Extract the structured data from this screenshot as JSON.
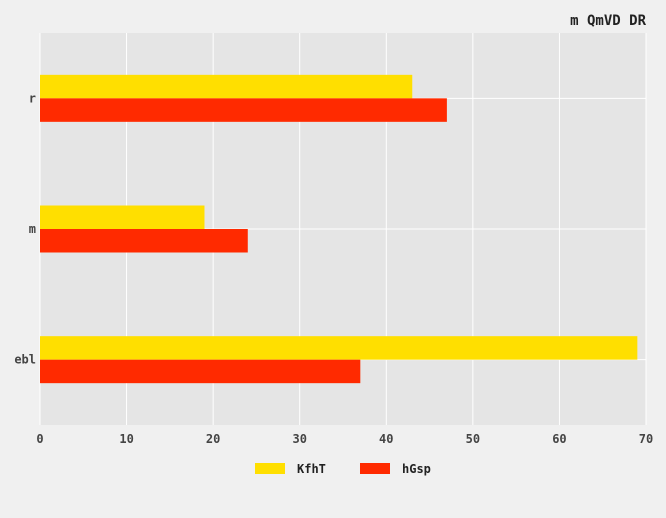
{
  "chart_data": {
    "type": "bar",
    "orientation": "horizontal",
    "title": "m QmVD DR",
    "categories": [
      "r",
      "m",
      "ebl"
    ],
    "series": [
      {
        "name": "KfhT",
        "values": [
          43,
          19,
          69
        ],
        "color": "#ffdf00"
      },
      {
        "name": "hGsp",
        "values": [
          47,
          24,
          37
        ],
        "color": "#ff2a00"
      }
    ],
    "xlim": [
      0,
      70
    ],
    "xticks": [
      "0",
      "10",
      "20",
      "30",
      "40",
      "50",
      "60",
      "70"
    ],
    "grid": true,
    "legend_position": "bottom"
  }
}
